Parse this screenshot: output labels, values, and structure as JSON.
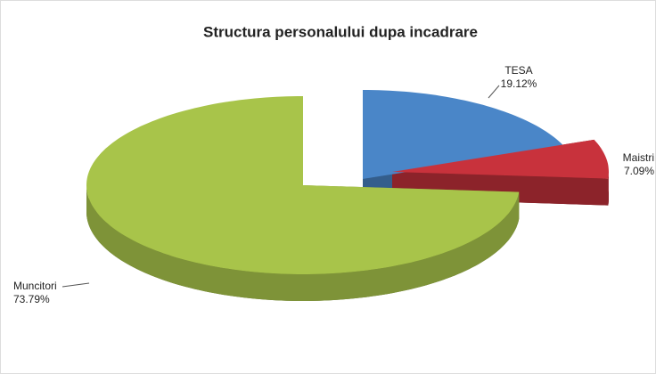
{
  "chart_data": {
    "type": "pie3d",
    "title": "Structura personalului dupa incadrare",
    "categories": [
      "TESA",
      "Maistri",
      "Muncitori"
    ],
    "values": [
      19.12,
      7.09,
      73.79
    ],
    "value_labels": [
      "19.12%",
      "7.09%",
      "73.79%"
    ],
    "colors": [
      "#4a86c8",
      "#c8323c",
      "#a8c44a"
    ]
  }
}
